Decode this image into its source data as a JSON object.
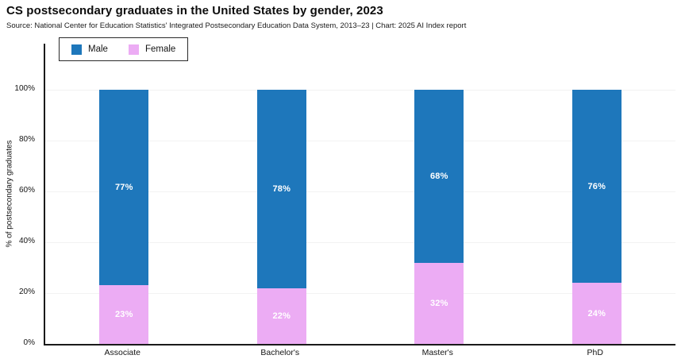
{
  "header": {
    "title": "CS postsecondary graduates in the United States by gender, 2023",
    "subtitle": "Source: National Center for Education Statistics' Integrated Postsecondary Education Data System, 2013–23 | Chart: 2025 AI Index report"
  },
  "colors": {
    "male": "#1e77bb",
    "female": "#ecacf4",
    "grid": "#f2f2f2",
    "axis": "#1a1a1a",
    "value_label": "#ffffff"
  },
  "chart_data": {
    "type": "bar",
    "stacked": true,
    "categories": [
      "Associate",
      "Bachelor's",
      "Master's",
      "PhD"
    ],
    "series": [
      {
        "name": "Male",
        "color": "#1e77bb",
        "values": [
          77,
          78,
          68,
          76
        ]
      },
      {
        "name": "Female",
        "color": "#ecacf4",
        "values": [
          23,
          22,
          32,
          24
        ]
      }
    ],
    "value_labels": {
      "Male": [
        "77%",
        "78%",
        "68%",
        "76%"
      ],
      "Female": [
        "23%",
        "22%",
        "32%",
        "24%"
      ]
    },
    "title": "CS postsecondary graduates in the United States by gender, 2023",
    "xlabel": "",
    "ylabel": "% of postsecondary graduates",
    "ylim": [
      0,
      100
    ],
    "yticks": [
      "0%",
      "20%",
      "40%",
      "60%",
      "80%",
      "100%"
    ],
    "grid": true,
    "legend_position": "top-left"
  }
}
